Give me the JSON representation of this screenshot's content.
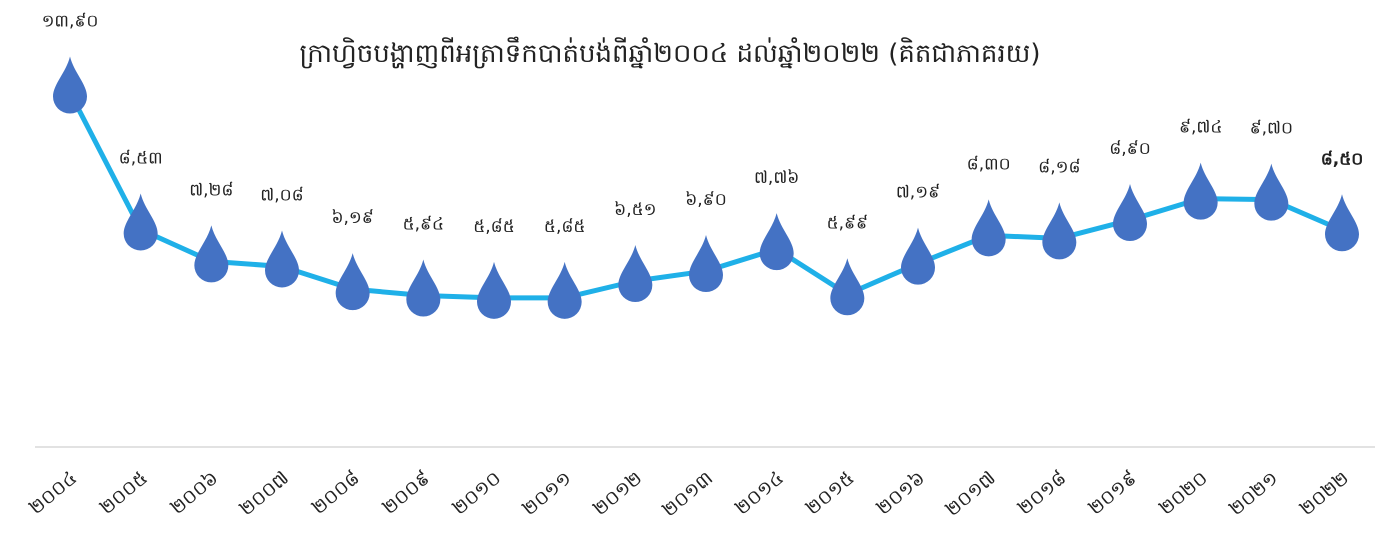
{
  "chart_data": {
    "type": "line",
    "title": "ក្រាហ្វិចបង្ហាញពីអត្រាទឹកបាត់បង់ពីឆ្នាំ២០០៤ ដល់ឆ្នាំ២០២២ (គិតជាភាគរយ)",
    "categories": [
      "២០០៤",
      "២០០៥",
      "២០០៦",
      "២០០៧",
      "២០០៨",
      "២០០៩",
      "២០១០",
      "២០១១",
      "២០១២",
      "២០១៣",
      "២០១៤",
      "២០១៥",
      "២០១៦",
      "២០១៧",
      "២០១៨",
      "២០១៩",
      "២០២០",
      "២០២១",
      "២០២២"
    ],
    "values": [
      13.9,
      8.53,
      7.28,
      7.08,
      6.19,
      5.94,
      5.85,
      5.85,
      6.51,
      6.9,
      7.76,
      5.99,
      7.19,
      8.3,
      8.18,
      8.9,
      9.74,
      9.7,
      8.5
    ],
    "value_labels": [
      "១៣,៩០",
      "៨,៥៣",
      "៧,២៨",
      "៧,០៨",
      "៦,១៩",
      "៥,៩៤",
      "៥,៨៥",
      "៥,៨៥",
      "៦,៥១",
      "៦,៩០",
      "៧,៧៦",
      "៥,៩៩",
      "៧,១៩",
      "៨,៣០",
      "៨,១៨",
      "៨,៩០",
      "៩,៧៤",
      "៩,៧០",
      "៨,៥០"
    ],
    "color": "#1fb0e8",
    "marker_color": "#4472c4",
    "ylim": [
      0,
      16
    ]
  }
}
